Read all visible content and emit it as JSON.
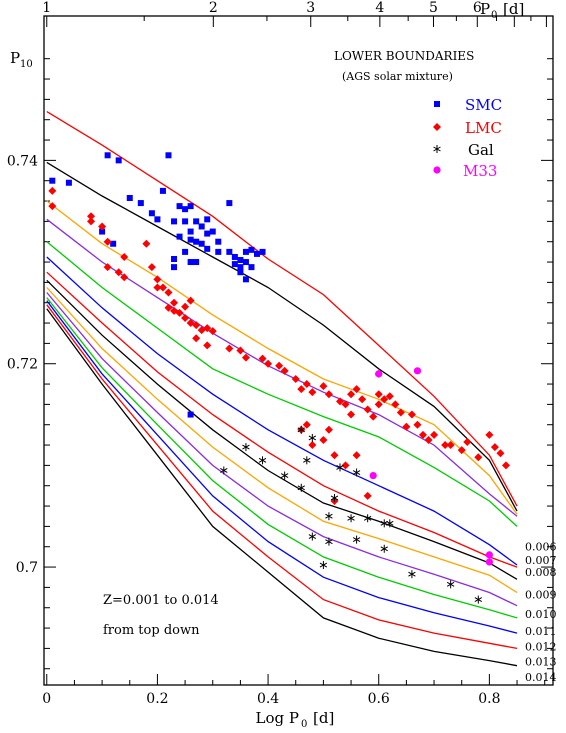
{
  "chart_data": {
    "type": "scatter",
    "title": "",
    "xlabel_main": "Log P",
    "xlabel_sub": "0",
    "xlabel_unit": "[d]",
    "top_axis_label_main": "P",
    "top_axis_label_sub": "0",
    "top_axis_label_unit": "[d]",
    "ylabel_main": "P",
    "ylabel_sub": "10",
    "xlim": [
      -0.005,
      0.915
    ],
    "ylim": [
      0.6884,
      0.7542
    ],
    "x_ticks": [
      {
        "value": 0,
        "label": "0"
      },
      {
        "value": 0.2,
        "label": "0.2"
      },
      {
        "value": 0.4,
        "label": "0.4"
      },
      {
        "value": 0.6,
        "label": "0.6"
      },
      {
        "value": 0.8,
        "label": "0.8"
      }
    ],
    "y_ticks": [
      {
        "value": 0.7,
        "label": "0.7"
      },
      {
        "value": 0.72,
        "label": "0.72"
      },
      {
        "value": 0.74,
        "label": "0.74"
      }
    ],
    "top_ticks": [
      {
        "value": 1,
        "label": "1"
      },
      {
        "value": 2,
        "label": "2"
      },
      {
        "value": 3,
        "label": "3"
      },
      {
        "value": 4,
        "label": "4"
      },
      {
        "value": 5,
        "label": "5"
      },
      {
        "value": 6,
        "label": "6"
      }
    ],
    "legend_title": "LOWER BOUNDARIES",
    "legend_subtitle": "(AGS solar mixture)",
    "legend_position": "top-right",
    "annotation_line1": "Z=0.001 to 0.014",
    "annotation_line2": "from top down",
    "curve_x": [
      0.0,
      0.1,
      0.2,
      0.3,
      0.4,
      0.5,
      0.6,
      0.7,
      0.8,
      0.85
    ],
    "lines": [
      {
        "label": "",
        "color": "#ff0000",
        "values": [
          0.7448,
          0.7415,
          0.738,
          0.7345,
          0.7303,
          0.7268,
          0.7218,
          0.7168,
          0.711,
          0.706
        ]
      },
      {
        "label": "",
        "color": "#000000",
        "values": [
          0.7398,
          0.7365,
          0.7335,
          0.7305,
          0.7275,
          0.7238,
          0.7195,
          0.7158,
          0.7105,
          0.7055
        ]
      },
      {
        "label": "",
        "color": "#ffa500",
        "values": [
          0.736,
          0.7318,
          0.7285,
          0.7248,
          0.7215,
          0.7185,
          0.7165,
          0.714,
          0.709,
          0.7052
        ]
      },
      {
        "label": "",
        "color": "#8a2be2",
        "values": [
          0.7342,
          0.73,
          0.7265,
          0.723,
          0.7198,
          0.7172,
          0.715,
          0.712,
          0.7072,
          0.705
        ]
      },
      {
        "label": "",
        "color": "#00cc00",
        "values": [
          0.732,
          0.7275,
          0.7235,
          0.7195,
          0.717,
          0.7148,
          0.7128,
          0.7098,
          0.7065,
          0.704
        ]
      },
      {
        "label": "",
        "color": "#0000ff",
        "values": [
          0.7305,
          0.7255,
          0.721,
          0.717,
          0.7135,
          0.7105,
          0.708,
          0.7055,
          0.7022,
          0.7002
        ]
      },
      {
        "label": "0.006",
        "color": "#ff0000",
        "values": [
          0.729,
          0.724,
          0.7192,
          0.715,
          0.7113,
          0.708,
          0.7055,
          0.7034,
          0.701,
          0.7
        ]
      },
      {
        "label": "0.007",
        "color": "#000000",
        "values": [
          0.7282,
          0.7228,
          0.718,
          0.7135,
          0.7095,
          0.7063,
          0.7045,
          0.7025,
          0.7004,
          0.6988
        ]
      },
      {
        "label": "0.008",
        "color": "#ffa500",
        "values": [
          0.7275,
          0.7215,
          0.7165,
          0.7118,
          0.7078,
          0.7045,
          0.7028,
          0.701,
          0.6992,
          0.6975
        ]
      },
      {
        "label": "0.009",
        "color": "#8a2be2",
        "values": [
          0.727,
          0.7205,
          0.7152,
          0.71,
          0.706,
          0.703,
          0.701,
          0.6993,
          0.6975,
          0.6962
        ]
      },
      {
        "label": "0.010",
        "color": "#00cc00",
        "values": [
          0.7265,
          0.7196,
          0.714,
          0.7085,
          0.7042,
          0.701,
          0.699,
          0.6973,
          0.6958,
          0.695
        ]
      },
      {
        "label": "0.011",
        "color": "#0000ff",
        "values": [
          0.7262,
          0.719,
          0.713,
          0.707,
          0.7025,
          0.699,
          0.697,
          0.6955,
          0.6942,
          0.6935
        ]
      },
      {
        "label": "0.012",
        "color": "#ff0000",
        "values": [
          0.7258,
          0.7185,
          0.712,
          0.7055,
          0.701,
          0.6968,
          0.6948,
          0.6935,
          0.6925,
          0.692
        ]
      },
      {
        "label": "0.013",
        "color": "#000000",
        "values": [
          0.7254,
          0.718,
          0.711,
          0.704,
          0.6995,
          0.695,
          0.693,
          0.6917,
          0.6908,
          0.6903
        ]
      },
      {
        "label": "0.014",
        "color": "#000000",
        "values": []
      }
    ],
    "line_label_y": [
      0.702,
      0.7007,
      0.6995,
      0.6973,
      0.6954,
      0.6937,
      0.6922,
      0.6907,
      0.6892
    ],
    "series": [
      {
        "name": "SMC",
        "marker": "square",
        "color": "#0000ff",
        "points": [
          [
            0.01,
            0.738
          ],
          [
            0.04,
            0.7378
          ],
          [
            0.11,
            0.7405
          ],
          [
            0.13,
            0.74
          ],
          [
            0.22,
            0.7405
          ],
          [
            0.15,
            0.7363
          ],
          [
            0.12,
            0.7318
          ],
          [
            0.1,
            0.733
          ],
          [
            0.17,
            0.7358
          ],
          [
            0.19,
            0.7348
          ],
          [
            0.2,
            0.7342
          ],
          [
            0.21,
            0.737
          ],
          [
            0.23,
            0.734
          ],
          [
            0.24,
            0.7355
          ],
          [
            0.25,
            0.7352
          ],
          [
            0.25,
            0.734
          ],
          [
            0.26,
            0.7355
          ],
          [
            0.27,
            0.734
          ],
          [
            0.26,
            0.733
          ],
          [
            0.28,
            0.7335
          ],
          [
            0.29,
            0.7342
          ],
          [
            0.29,
            0.7328
          ],
          [
            0.3,
            0.733
          ],
          [
            0.31,
            0.732
          ],
          [
            0.33,
            0.7358
          ],
          [
            0.24,
            0.7325
          ],
          [
            0.26,
            0.7322
          ],
          [
            0.27,
            0.732
          ],
          [
            0.28,
            0.7318
          ],
          [
            0.29,
            0.7313
          ],
          [
            0.31,
            0.731
          ],
          [
            0.23,
            0.7303
          ],
          [
            0.25,
            0.731
          ],
          [
            0.26,
            0.73
          ],
          [
            0.27,
            0.73
          ],
          [
            0.23,
            0.7295
          ],
          [
            0.33,
            0.731
          ],
          [
            0.34,
            0.7305
          ],
          [
            0.35,
            0.7302
          ],
          [
            0.36,
            0.731
          ],
          [
            0.37,
            0.7312
          ],
          [
            0.38,
            0.7308
          ],
          [
            0.39,
            0.731
          ],
          [
            0.34,
            0.7298
          ],
          [
            0.35,
            0.7295
          ],
          [
            0.36,
            0.73
          ],
          [
            0.37,
            0.7295
          ],
          [
            0.35,
            0.729
          ],
          [
            0.36,
            0.7283
          ],
          [
            0.26,
            0.715
          ]
        ]
      },
      {
        "name": "LMC",
        "marker": "diamond",
        "color": "#ff0000",
        "points": [
          [
            0.01,
            0.737
          ],
          [
            0.01,
            0.7355
          ],
          [
            0.08,
            0.7345
          ],
          [
            0.08,
            0.734
          ],
          [
            0.1,
            0.7335
          ],
          [
            0.11,
            0.732
          ],
          [
            0.14,
            0.7305
          ],
          [
            0.11,
            0.7295
          ],
          [
            0.13,
            0.729
          ],
          [
            0.14,
            0.7285
          ],
          [
            0.18,
            0.7318
          ],
          [
            0.19,
            0.7295
          ],
          [
            0.2,
            0.7283
          ],
          [
            0.2,
            0.7275
          ],
          [
            0.21,
            0.7275
          ],
          [
            0.22,
            0.727
          ],
          [
            0.23,
            0.726
          ],
          [
            0.22,
            0.7255
          ],
          [
            0.23,
            0.7252
          ],
          [
            0.24,
            0.725
          ],
          [
            0.25,
            0.7256
          ],
          [
            0.26,
            0.7262
          ],
          [
            0.25,
            0.7245
          ],
          [
            0.26,
            0.724
          ],
          [
            0.27,
            0.7238
          ],
          [
            0.28,
            0.7233
          ],
          [
            0.29,
            0.7235
          ],
          [
            0.3,
            0.7232
          ],
          [
            0.27,
            0.7225
          ],
          [
            0.29,
            0.7218
          ],
          [
            0.33,
            0.7215
          ],
          [
            0.35,
            0.7213
          ],
          [
            0.36,
            0.7206
          ],
          [
            0.39,
            0.7205
          ],
          [
            0.4,
            0.72
          ],
          [
            0.42,
            0.7198
          ],
          [
            0.43,
            0.7193
          ],
          [
            0.45,
            0.7185
          ],
          [
            0.46,
            0.7175
          ],
          [
            0.47,
            0.718
          ],
          [
            0.48,
            0.7172
          ],
          [
            0.5,
            0.7178
          ],
          [
            0.51,
            0.717
          ],
          [
            0.53,
            0.7163
          ],
          [
            0.55,
            0.717
          ],
          [
            0.56,
            0.7175
          ],
          [
            0.54,
            0.716
          ],
          [
            0.55,
            0.715
          ],
          [
            0.57,
            0.7165
          ],
          [
            0.58,
            0.7155
          ],
          [
            0.59,
            0.7148
          ],
          [
            0.6,
            0.716
          ],
          [
            0.6,
            0.717
          ],
          [
            0.61,
            0.7165
          ],
          [
            0.62,
            0.7168
          ],
          [
            0.63,
            0.716
          ],
          [
            0.64,
            0.7152
          ],
          [
            0.65,
            0.7138
          ],
          [
            0.66,
            0.715
          ],
          [
            0.67,
            0.714
          ],
          [
            0.68,
            0.713
          ],
          [
            0.69,
            0.7125
          ],
          [
            0.7,
            0.713
          ],
          [
            0.72,
            0.712
          ],
          [
            0.73,
            0.712
          ],
          [
            0.75,
            0.7115
          ],
          [
            0.76,
            0.7123
          ],
          [
            0.78,
            0.7108
          ],
          [
            0.8,
            0.713
          ],
          [
            0.81,
            0.7118
          ],
          [
            0.82,
            0.7112
          ],
          [
            0.83,
            0.71
          ],
          [
            0.46,
            0.7135
          ],
          [
            0.47,
            0.714
          ],
          [
            0.48,
            0.712
          ],
          [
            0.5,
            0.7125
          ],
          [
            0.51,
            0.7135
          ],
          [
            0.52,
            0.711
          ],
          [
            0.54,
            0.71
          ],
          [
            0.56,
            0.711
          ],
          [
            0.58,
            0.707
          ],
          [
            0.52,
            0.7065
          ],
          [
            0.6,
            0.719
          ]
        ]
      },
      {
        "name": "Gal",
        "marker": "star",
        "color": "#000000",
        "points": [
          [
            0.46,
            0.7135
          ],
          [
            0.48,
            0.7127
          ],
          [
            0.36,
            0.7118
          ],
          [
            0.39,
            0.7105
          ],
          [
            0.43,
            0.709
          ],
          [
            0.47,
            0.7105
          ],
          [
            0.53,
            0.7098
          ],
          [
            0.56,
            0.7093
          ],
          [
            0.32,
            0.7095
          ],
          [
            0.46,
            0.7078
          ],
          [
            0.52,
            0.7068
          ],
          [
            0.51,
            0.705
          ],
          [
            0.55,
            0.7048
          ],
          [
            0.58,
            0.7048
          ],
          [
            0.61,
            0.7043
          ],
          [
            0.62,
            0.7043
          ],
          [
            0.48,
            0.703
          ],
          [
            0.51,
            0.7025
          ],
          [
            0.56,
            0.7027
          ],
          [
            0.61,
            0.7018
          ],
          [
            0.5,
            0.7002
          ],
          [
            0.66,
            0.6993
          ],
          [
            0.73,
            0.6983
          ],
          [
            0.78,
            0.6968
          ]
        ]
      },
      {
        "name": "M33",
        "marker": "circle",
        "color": "#ff00ff",
        "points": [
          [
            0.6,
            0.719
          ],
          [
            0.67,
            0.7193
          ],
          [
            0.59,
            0.709
          ],
          [
            0.8,
            0.7012
          ],
          [
            0.8,
            0.7005
          ]
        ]
      }
    ]
  }
}
